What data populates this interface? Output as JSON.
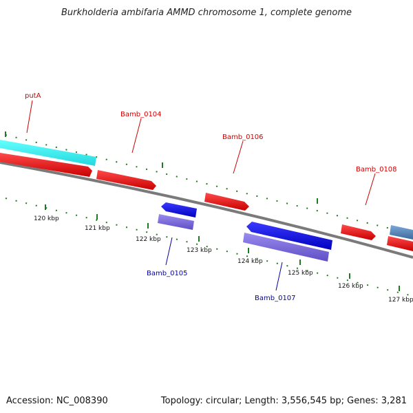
{
  "title": "Burkholderia ambifaria AMMD chromosome 1, complete genome",
  "footer": {
    "accession": "Accession: NC_008390",
    "summary": "Topology: circular; Length: 3,556,545 bp; Genes: 3,281"
  },
  "ticks": [
    "120 kbp",
    "121 kbp",
    "122 kbp",
    "123 kbp",
    "124 kbp",
    "125 kbp",
    "126 kbp",
    "127 kbp"
  ],
  "gene_labels": {
    "putA": "putA",
    "b104": "Bamb_0104",
    "b105": "Bamb_0105",
    "b106": "Bamb_0106",
    "b107": "Bamb_0107",
    "b108": "Bamb_0108"
  },
  "colors": {
    "forward_cds": "#ee0000",
    "reverse_cds": "#0000ee",
    "forward_rna": "#33eeee",
    "reverse_rna": "#7766dd",
    "steelblue": "#5588bb",
    "backbone": "#808080",
    "tick_mark": "#227722"
  }
}
